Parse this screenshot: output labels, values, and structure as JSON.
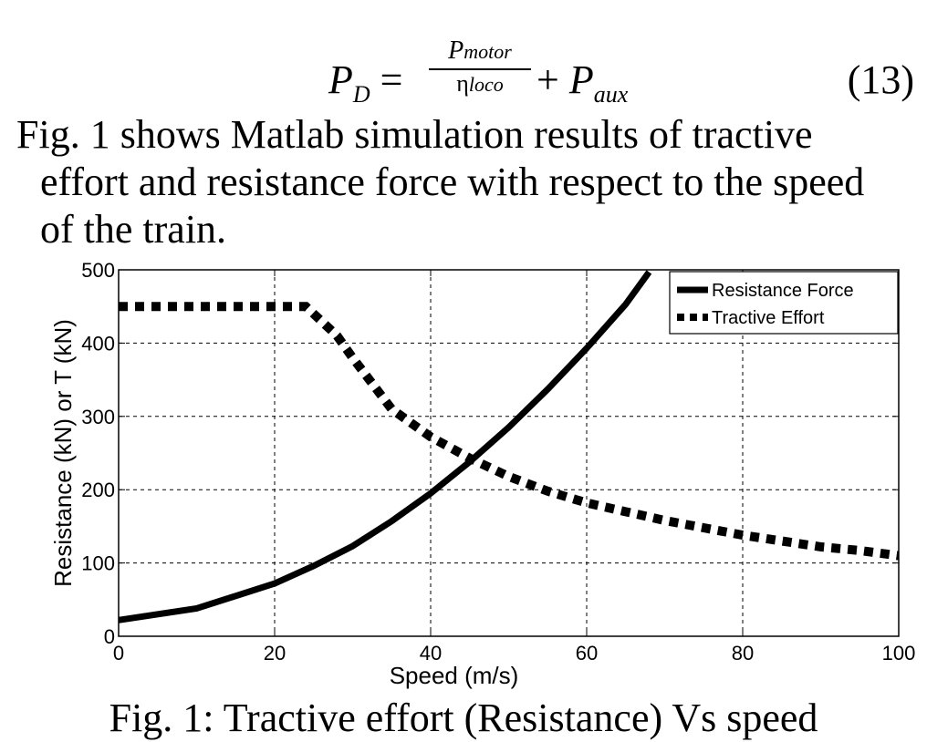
{
  "equation": {
    "lhs": "P",
    "lhs_sub": "D",
    "equals": "=",
    "numerator": "P",
    "numerator_sub": "motor",
    "denominator": "η",
    "denominator_sub": "loco",
    "plus": "+",
    "rhs": "P",
    "rhs_sub": "aux",
    "number": "(13)"
  },
  "paragraph": {
    "line1": "Fig. 1 shows Matlab simulation results of tractive",
    "line2": "effort and resistance force with respect to the speed",
    "line3": "of the train."
  },
  "caption": "Fig. 1: Tractive effort (Resistance) Vs speed",
  "chart_data": {
    "type": "line",
    "title": "",
    "xlabel": "Speed (m/s)",
    "ylabel": "Resistance (kN) or T (kN)",
    "xlim": [
      0,
      100
    ],
    "ylim": [
      0,
      500
    ],
    "xticks": [
      0,
      20,
      40,
      60,
      80,
      100
    ],
    "yticks": [
      0,
      100,
      200,
      300,
      400,
      500
    ],
    "grid": true,
    "legend_position": "top-right",
    "series": [
      {
        "name": "Resistance Force",
        "style": "solid",
        "color": "#000000",
        "x": [
          0,
          10,
          20,
          25,
          30,
          35,
          40,
          45,
          50,
          55,
          60,
          65,
          68
        ],
        "y": [
          22,
          38,
          72,
          96,
          123,
          157,
          195,
          238,
          285,
          337,
          393,
          453,
          497
        ]
      },
      {
        "name": "Tractive Effort",
        "style": "dotted",
        "color": "#000000",
        "x": [
          0,
          10,
          20,
          24,
          25,
          28,
          30,
          35,
          40,
          45,
          50,
          55,
          60,
          65,
          70,
          75,
          80,
          85,
          90,
          95,
          100
        ],
        "y": [
          450,
          450,
          450,
          450,
          440,
          410,
          380,
          310,
          272,
          243,
          218,
          198,
          182,
          170,
          158,
          148,
          138,
          130,
          122,
          117,
          110
        ]
      }
    ]
  }
}
